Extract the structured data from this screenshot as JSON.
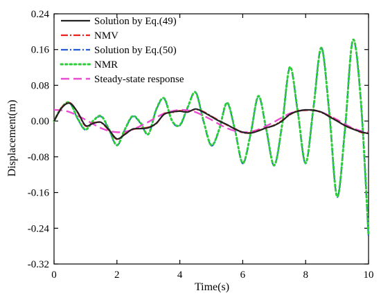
{
  "chart_data": {
    "type": "line",
    "title": "",
    "xlabel": "Time(s)",
    "ylabel": "Displacement(m)",
    "xlim": [
      0,
      10
    ],
    "ylim": [
      -0.32,
      0.24
    ],
    "xticks": [
      0,
      2,
      4,
      6,
      8,
      10
    ],
    "yticks": [
      -0.32,
      -0.24,
      -0.16,
      -0.08,
      0.0,
      0.08,
      0.16,
      0.24
    ],
    "xtick_labels": [
      "0",
      "2",
      "4",
      "6",
      "8",
      "10"
    ],
    "ytick_labels": [
      "-0.32",
      "-0.24",
      "-0.16",
      "-0.08",
      "0.00",
      "0.08",
      "0.16",
      "0.24"
    ],
    "grid": false,
    "legend_position": "top-left",
    "series": [
      {
        "name": "Solution by Eq.(49)",
        "color": "#222222",
        "dash": "solid",
        "x": [
          0,
          0.25,
          0.5,
          0.75,
          1.0,
          1.25,
          1.5,
          1.75,
          2.0,
          2.25,
          2.5,
          2.75,
          3.0,
          3.25,
          3.5,
          3.75,
          4.0,
          4.25,
          4.5,
          4.75,
          5.0,
          5.25,
          5.5,
          5.75,
          6.0,
          6.25,
          6.5,
          6.75,
          7.0,
          7.25,
          7.5,
          7.75,
          8.0,
          8.25,
          8.5,
          8.75,
          9.0,
          9.25,
          9.5,
          9.75,
          10.0
        ],
        "y": [
          0.0,
          0.03,
          0.04,
          0.02,
          -0.01,
          -0.005,
          -0.003,
          -0.02,
          -0.04,
          -0.03,
          -0.018,
          -0.017,
          -0.015,
          -0.005,
          0.015,
          0.02,
          0.022,
          0.02,
          0.027,
          0.02,
          0.01,
          0.0,
          -0.008,
          -0.018,
          -0.025,
          -0.027,
          -0.022,
          -0.015,
          -0.01,
          0.0,
          0.015,
          0.022,
          0.025,
          0.024,
          0.02,
          0.01,
          0.0,
          -0.01,
          -0.018,
          -0.024,
          -0.028
        ]
      },
      {
        "name": "NMV",
        "color": "#e8231f",
        "dash": "dashdot",
        "x": [
          0,
          0.25,
          0.5,
          0.75,
          1.0,
          1.25,
          1.5,
          1.75,
          2.0,
          2.25,
          2.5,
          2.75,
          3.0,
          3.25,
          3.5,
          3.75,
          4.0,
          4.25,
          4.5,
          4.75,
          5.0,
          5.25,
          5.5,
          5.75,
          6.0,
          6.25,
          6.5,
          6.75,
          7.0,
          7.25,
          7.5,
          7.75,
          8.0,
          8.25,
          8.5,
          8.75,
          9.0,
          9.25,
          9.5,
          9.75,
          10.0
        ],
        "y": [
          0.0,
          0.031,
          0.041,
          0.019,
          -0.011,
          -0.004,
          -0.004,
          -0.021,
          -0.041,
          -0.029,
          -0.019,
          -0.016,
          -0.014,
          -0.006,
          0.016,
          0.019,
          0.023,
          0.021,
          0.026,
          0.021,
          0.011,
          0.001,
          -0.009,
          -0.017,
          -0.026,
          -0.026,
          -0.021,
          -0.016,
          -0.009,
          0.001,
          0.014,
          0.023,
          0.024,
          0.025,
          0.019,
          0.011,
          0.001,
          -0.011,
          -0.017,
          -0.025,
          -0.027
        ]
      },
      {
        "name": "Solution by Eq.(50)",
        "color": "#1f5bd6",
        "dash": "dashdot",
        "x": [
          0,
          0.25,
          0.5,
          0.75,
          1.0,
          1.25,
          1.5,
          1.75,
          2.0,
          2.25,
          2.5,
          2.75,
          3.0,
          3.25,
          3.5,
          3.75,
          4.0,
          4.25,
          4.5,
          4.75,
          5.0,
          5.25,
          5.5,
          5.75,
          6.0,
          6.25,
          6.5,
          6.75,
          7.0,
          7.25,
          7.5,
          7.75,
          8.0,
          8.25,
          8.5,
          8.75,
          9.0,
          9.25,
          9.5,
          9.75,
          10.0
        ],
        "y": [
          0.0,
          0.03,
          0.04,
          0.005,
          -0.02,
          0.0,
          0.01,
          -0.02,
          -0.055,
          -0.02,
          0.01,
          -0.005,
          -0.03,
          0.025,
          0.05,
          0.0,
          -0.01,
          0.03,
          0.065,
          0.0,
          -0.055,
          -0.02,
          0.04,
          -0.02,
          -0.095,
          -0.03,
          0.055,
          -0.02,
          -0.1,
          -0.01,
          0.12,
          0.02,
          -0.095,
          0.03,
          0.165,
          0.02,
          -0.17,
          -0.02,
          0.18,
          0.05,
          -0.26
        ]
      },
      {
        "name": "NMR",
        "color": "#2ecc3a",
        "dash": "dotted",
        "x": [
          0,
          0.25,
          0.5,
          0.75,
          1.0,
          1.25,
          1.5,
          1.75,
          2.0,
          2.25,
          2.5,
          2.75,
          3.0,
          3.25,
          3.5,
          3.75,
          4.0,
          4.25,
          4.5,
          4.75,
          5.0,
          5.25,
          5.5,
          5.75,
          6.0,
          6.25,
          6.5,
          6.75,
          7.0,
          7.25,
          7.5,
          7.75,
          8.0,
          8.25,
          8.5,
          8.75,
          9.0,
          9.25,
          9.5,
          9.75,
          10.0
        ],
        "y": [
          0.0,
          0.031,
          0.041,
          0.006,
          -0.019,
          0.001,
          0.011,
          -0.019,
          -0.054,
          -0.019,
          0.011,
          -0.004,
          -0.029,
          0.026,
          0.051,
          0.001,
          -0.009,
          0.031,
          0.064,
          0.001,
          -0.054,
          -0.019,
          0.041,
          -0.019,
          -0.094,
          -0.029,
          0.056,
          -0.019,
          -0.099,
          -0.009,
          0.121,
          0.021,
          -0.094,
          0.031,
          0.164,
          0.021,
          -0.169,
          -0.019,
          0.181,
          0.051,
          -0.255
        ]
      },
      {
        "name": "Steady-state response",
        "color": "#e84ccf",
        "dash": "dashed",
        "x": [
          0,
          0.25,
          0.5,
          0.75,
          1.0,
          1.25,
          1.5,
          1.75,
          2.0,
          2.25,
          2.5,
          2.75,
          3.0,
          3.25,
          3.5,
          3.75,
          4.0,
          4.25,
          4.5,
          4.75,
          5.0,
          5.25,
          5.5,
          5.75,
          6.0,
          6.25,
          6.5,
          6.75,
          7.0,
          7.25,
          7.5,
          7.75,
          8.0,
          8.25,
          8.5,
          8.75,
          9.0,
          9.25,
          9.5,
          9.75,
          10.0
        ],
        "y": [
          0.025,
          0.024,
          0.02,
          0.012,
          0.003,
          -0.007,
          -0.016,
          -0.022,
          -0.025,
          -0.024,
          -0.019,
          -0.011,
          -0.002,
          0.008,
          0.017,
          0.022,
          0.025,
          0.024,
          0.02,
          0.012,
          0.003,
          -0.007,
          -0.016,
          -0.022,
          -0.025,
          -0.024,
          -0.019,
          -0.011,
          -0.002,
          0.008,
          0.017,
          0.022,
          0.025,
          0.024,
          0.02,
          0.012,
          0.003,
          -0.007,
          -0.016,
          -0.022,
          -0.025
        ]
      }
    ]
  }
}
